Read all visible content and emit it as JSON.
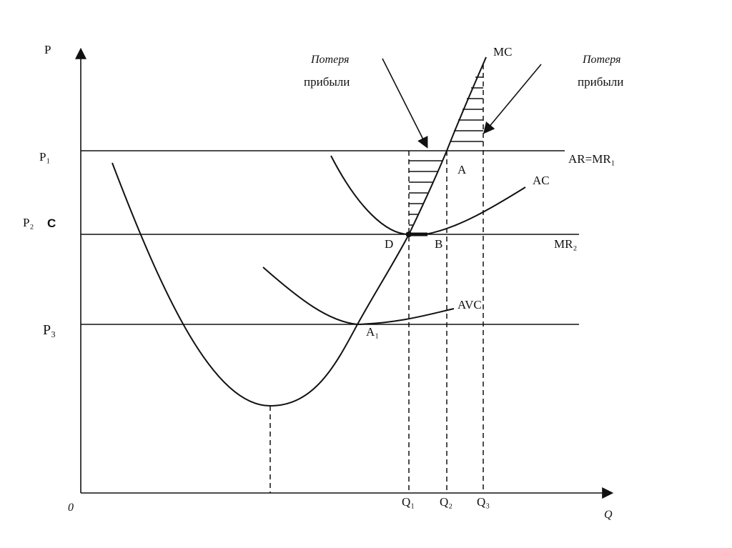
{
  "axes": {
    "y_label": "P",
    "x_label": "Q",
    "origin": "0"
  },
  "levels": {
    "p1": "P₁",
    "p2": "P₂",
    "p2_mark": "C",
    "p3": "P₃"
  },
  "curves": {
    "mc": "MC",
    "ar_mr1": "AR=MR₁",
    "ac": "AC",
    "mr2": "MR₂",
    "avc": "AVC"
  },
  "points": {
    "a": "A",
    "d": "D",
    "b": "B",
    "a1": "A₁"
  },
  "quantities": {
    "q1": "Q₁",
    "q2": "Q₂",
    "q3": "Q₃"
  },
  "annotations": {
    "left_line1": "Потеря",
    "left_line2": "прибыли",
    "right_line1": "Потеря",
    "right_line2": "прибыли"
  }
}
